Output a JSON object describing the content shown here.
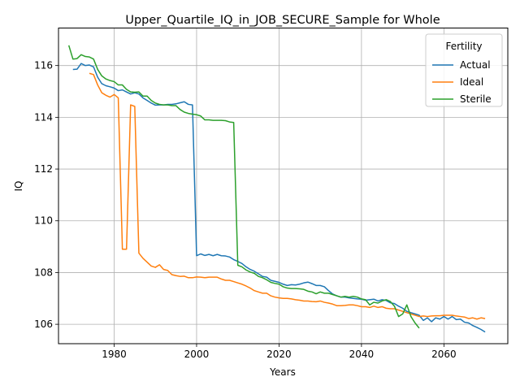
{
  "chart_data": {
    "type": "line",
    "title": "Upper_Quartile_IQ_in_JOB_SECURE_Sample for Whole",
    "xlabel": "Years",
    "ylabel": "IQ",
    "xlim": [
      1966.5,
      2075.5
    ],
    "ylim": [
      105.25,
      117.45
    ],
    "xticks": [
      1980,
      2000,
      2020,
      2040,
      2060
    ],
    "yticks": [
      106,
      108,
      110,
      112,
      114,
      116
    ],
    "grid": true,
    "legend": {
      "title": "Fertility",
      "placement": "top-right"
    },
    "series": [
      {
        "name": "Actual",
        "color": "#1f77b4",
        "x": [
          1970,
          1971,
          1972,
          1973,
          1974,
          1975,
          1976,
          1977,
          1978,
          1979,
          1980,
          1981,
          1982,
          1983,
          1984,
          1985,
          1986,
          1987,
          1988,
          1989,
          1990,
          1991,
          1992,
          1993,
          1994,
          1995,
          1996,
          1997,
          1998,
          1999,
          2000,
          2001,
          2002,
          2003,
          2004,
          2005,
          2006,
          2007,
          2008,
          2009,
          2010,
          2011,
          2012,
          2013,
          2014,
          2015,
          2016,
          2017,
          2018,
          2019,
          2020,
          2021,
          2022,
          2023,
          2024,
          2025,
          2026,
          2027,
          2028,
          2029,
          2030,
          2031,
          2032,
          2033,
          2034,
          2035,
          2036,
          2037,
          2038,
          2039,
          2040,
          2041,
          2042,
          2043,
          2044,
          2045,
          2046,
          2047,
          2048,
          2049,
          2050,
          2051,
          2052,
          2053,
          2054,
          2055,
          2056,
          2057,
          2058,
          2059,
          2060,
          2061,
          2062,
          2063,
          2064,
          2065,
          2066,
          2067,
          2068,
          2069,
          2070
        ],
        "values": [
          115.85,
          115.86,
          116.08,
          116.0,
          116.02,
          115.95,
          115.55,
          115.3,
          115.22,
          115.18,
          115.13,
          115.03,
          115.06,
          114.98,
          114.9,
          114.95,
          114.9,
          114.75,
          114.65,
          114.55,
          114.47,
          114.48,
          114.48,
          114.5,
          114.5,
          114.52,
          114.56,
          114.6,
          114.5,
          114.48,
          108.65,
          108.72,
          108.66,
          108.7,
          108.65,
          108.7,
          108.65,
          108.64,
          108.6,
          108.5,
          108.43,
          108.35,
          108.22,
          108.12,
          108.05,
          107.95,
          107.85,
          107.82,
          107.7,
          107.66,
          107.62,
          107.55,
          107.5,
          107.53,
          107.52,
          107.55,
          107.6,
          107.63,
          107.57,
          107.5,
          107.5,
          107.45,
          107.3,
          107.17,
          107.1,
          107.05,
          107.05,
          107.02,
          107.0,
          106.98,
          106.97,
          106.93,
          106.95,
          106.97,
          106.9,
          106.95,
          106.92,
          106.83,
          106.8,
          106.7,
          106.62,
          106.5,
          106.45,
          106.4,
          106.35,
          106.15,
          106.25,
          106.1,
          106.25,
          106.2,
          106.3,
          106.2,
          106.3,
          106.18,
          106.2,
          106.08,
          106.05,
          105.95,
          105.88,
          105.8,
          105.7
        ]
      },
      {
        "name": "Ideal",
        "color": "#ff7f0e",
        "x": [
          1974,
          1975,
          1976,
          1977,
          1978,
          1979,
          1980,
          1981,
          1982,
          1983,
          1984,
          1985,
          1986,
          1987,
          1988,
          1989,
          1990,
          1991,
          1992,
          1993,
          1994,
          1995,
          1996,
          1997,
          1998,
          1999,
          2000,
          2001,
          2002,
          2003,
          2004,
          2005,
          2006,
          2007,
          2008,
          2009,
          2010,
          2011,
          2012,
          2013,
          2014,
          2015,
          2016,
          2017,
          2018,
          2019,
          2020,
          2021,
          2022,
          2023,
          2024,
          2025,
          2026,
          2027,
          2028,
          2029,
          2030,
          2031,
          2032,
          2033,
          2034,
          2035,
          2036,
          2037,
          2038,
          2039,
          2040,
          2041,
          2042,
          2043,
          2044,
          2045,
          2046,
          2047,
          2048,
          2049,
          2050,
          2051,
          2052,
          2053,
          2054,
          2055,
          2056,
          2057,
          2058,
          2059,
          2060,
          2061,
          2062,
          2063,
          2064,
          2065,
          2066,
          2067,
          2068,
          2069,
          2070
        ],
        "values": [
          115.7,
          115.65,
          115.25,
          114.95,
          114.85,
          114.78,
          114.88,
          114.75,
          108.9,
          108.9,
          114.48,
          114.42,
          108.75,
          108.55,
          108.4,
          108.25,
          108.2,
          108.3,
          108.12,
          108.08,
          107.92,
          107.88,
          107.85,
          107.86,
          107.8,
          107.8,
          107.83,
          107.82,
          107.8,
          107.82,
          107.82,
          107.82,
          107.75,
          107.7,
          107.7,
          107.65,
          107.6,
          107.55,
          107.48,
          107.4,
          107.3,
          107.25,
          107.2,
          107.2,
          107.1,
          107.05,
          107.02,
          107.0,
          107.0,
          106.98,
          106.95,
          106.93,
          106.9,
          106.9,
          106.88,
          106.87,
          106.9,
          106.85,
          106.82,
          106.78,
          106.72,
          106.72,
          106.73,
          106.75,
          106.75,
          106.72,
          106.68,
          106.68,
          106.65,
          106.7,
          106.65,
          106.68,
          106.62,
          106.6,
          106.6,
          106.55,
          106.5,
          106.45,
          106.4,
          106.35,
          106.3,
          106.32,
          106.3,
          106.32,
          106.33,
          106.33,
          106.35,
          106.35,
          106.35,
          106.32,
          106.3,
          106.28,
          106.22,
          106.25,
          106.2,
          106.25,
          106.22
        ]
      },
      {
        "name": "Sterile",
        "color": "#2ca02c",
        "x": [
          1969,
          1970,
          1971,
          1972,
          1973,
          1974,
          1975,
          1976,
          1977,
          1978,
          1979,
          1980,
          1981,
          1982,
          1983,
          1984,
          1985,
          1986,
          1987,
          1988,
          1989,
          1990,
          1991,
          1992,
          1993,
          1994,
          1995,
          1996,
          1997,
          1998,
          1999,
          2000,
          2001,
          2002,
          2003,
          2004,
          2005,
          2006,
          2007,
          2008,
          2009,
          2010,
          2011,
          2012,
          2013,
          2014,
          2015,
          2016,
          2017,
          2018,
          2019,
          2020,
          2021,
          2022,
          2023,
          2024,
          2025,
          2026,
          2027,
          2028,
          2029,
          2030,
          2031,
          2032,
          2033,
          2034,
          2035,
          2036,
          2037,
          2038,
          2039,
          2040,
          2041,
          2042,
          2043,
          2044,
          2045,
          2046,
          2047,
          2048,
          2049,
          2050,
          2051,
          2052,
          2053,
          2054
        ],
        "values": [
          116.78,
          116.25,
          116.27,
          116.42,
          116.35,
          116.33,
          116.25,
          115.85,
          115.6,
          115.48,
          115.42,
          115.38,
          115.25,
          115.25,
          115.08,
          114.98,
          114.97,
          114.98,
          114.82,
          114.82,
          114.65,
          114.55,
          114.5,
          114.48,
          114.48,
          114.45,
          114.45,
          114.3,
          114.2,
          114.15,
          114.12,
          114.1,
          114.05,
          113.9,
          113.9,
          113.88,
          113.88,
          113.88,
          113.87,
          113.82,
          113.8,
          108.28,
          108.22,
          108.1,
          108.02,
          107.97,
          107.85,
          107.8,
          107.72,
          107.62,
          107.58,
          107.55,
          107.45,
          107.4,
          107.38,
          107.38,
          107.37,
          107.35,
          107.28,
          107.25,
          107.18,
          107.25,
          107.2,
          107.2,
          107.15,
          107.1,
          107.05,
          107.08,
          107.05,
          107.08,
          107.05,
          106.98,
          106.95,
          106.75,
          106.85,
          106.82,
          106.9,
          106.95,
          106.88,
          106.7,
          106.3,
          106.4,
          106.75,
          106.3,
          106.05,
          105.85
        ]
      }
    ]
  }
}
